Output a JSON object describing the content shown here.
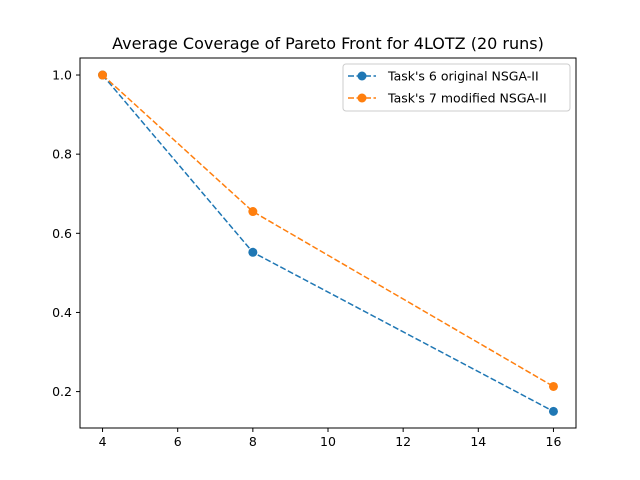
{
  "chart_data": {
    "type": "line",
    "title": "Average Coverage of Pareto Front for 4LOTZ (20 runs)",
    "xlabel": "",
    "ylabel": "",
    "xlim": [
      3.4,
      16.6
    ],
    "ylim": [
      0.108,
      1.043
    ],
    "xticks": [
      4,
      6,
      8,
      10,
      12,
      14,
      16
    ],
    "yticks": [
      0.2,
      0.4,
      0.6,
      0.8,
      1.0
    ],
    "xtick_labels": [
      "4",
      "6",
      "8",
      "10",
      "12",
      "14",
      "16"
    ],
    "ytick_labels": [
      "0.2",
      "0.4",
      "0.6",
      "0.8",
      "1.0"
    ],
    "grid": false,
    "legend_position": "top-right",
    "x": [
      4,
      8,
      16
    ],
    "series": [
      {
        "name": "Task's 6 original NSGA-II",
        "values": [
          1.0,
          0.552,
          0.15
        ],
        "color": "#1f77b4",
        "style": "dashed",
        "marker": "circle"
      },
      {
        "name": "Task's 7 modified NSGA-II",
        "values": [
          1.0,
          0.655,
          0.213
        ],
        "color": "#ff7f0e",
        "style": "dashed",
        "marker": "circle"
      }
    ]
  }
}
